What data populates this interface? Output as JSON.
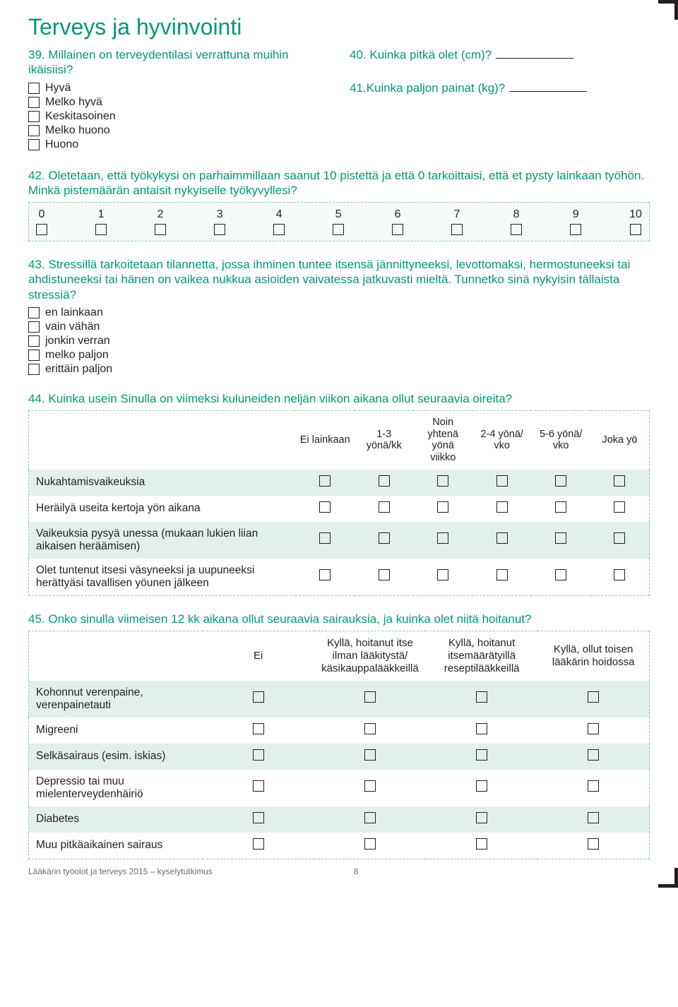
{
  "colors": {
    "accent": "#009878",
    "text": "#231f20",
    "table_border": "#8fc7b7",
    "zebra_even": "#e3f0ea",
    "zebra_odd": "#ffffff",
    "scale_bg": "#f5faf8",
    "footer_text": "#6b6b6b"
  },
  "title": "Terveys ja hyvinvointi",
  "q39": {
    "text": "39. Millainen on terveydentilasi verrattuna muihin ikäisiisi?",
    "options": [
      "Hyvä",
      "Melko hyvä",
      "Keskitasoinen",
      "Melko huono",
      "Huono"
    ]
  },
  "q40": {
    "text": "40. Kuinka pitkä olet (cm)?"
  },
  "q41": {
    "text": "41.Kuinka paljon painat (kg)?"
  },
  "q42": {
    "text": "42. Oletetaan, että työkykysi on parhaimmillaan saanut 10 pistettä ja että 0 tarkoittaisi, että et pysty lainkaan työhön. Minkä pistemäärän antaisit nykyiselle työkyvyllesi?",
    "scale": [
      "0",
      "1",
      "2",
      "3",
      "4",
      "5",
      "6",
      "7",
      "8",
      "9",
      "10"
    ]
  },
  "q43": {
    "text": "43. Stressillä tarkoitetaan tilannetta, jossa ihminen tuntee itsensä jännittyneeksi, levottomaksi, hermostuneeksi tai ahdistuneeksi tai hänen on vaikea nukkua asioiden vaivatessa jatkuvasti mieltä. Tunnetko sinä nykyisin tällaista stressiä?",
    "options": [
      "en lainkaan",
      "vain vähän",
      "jonkin verran",
      "melko paljon",
      "erittäin paljon"
    ]
  },
  "q44": {
    "text": "44. Kuinka usein Sinulla on viimeksi kuluneiden neljän viikon aikana ollut seuraavia oireita?",
    "headers": [
      "Ei lainkaan",
      "1-3 yönä/kk",
      "Noin yhtenä yönä viikko",
      "2-4 yönä/ vko",
      "5-6 yönä/ vko",
      "Joka yö"
    ],
    "rows": [
      "Nukahtamisvaikeuksia",
      "Heräilyä useita kertoja yön aikana",
      "Vaikeuksia pysyä unessa (mukaan lukien liian aikaisen heräämisen)",
      "Olet tuntenut itsesi väsyneeksi ja uupuneeksi herättyäsi tavallisen yöunen jälkeen"
    ]
  },
  "q45": {
    "text": "45. Onko sinulla viimeisen 12 kk aikana ollut seuraavia sairauksia, ja kuinka olet niitä hoitanut?",
    "headers": [
      "Ei",
      "Kyllä, hoitanut itse ilman lääkitystä/ käsikauppalääkkeillä",
      "Kyllä, hoitanut itsemäärätyillä reseptilääkkeillä",
      "Kyllä, ollut toisen lääkärin hoidossa"
    ],
    "rows": [
      "Kohonnut verenpaine, verenpainetauti",
      "Migreeni",
      "Selkäsairaus (esim. iskias)",
      "Depressio tai muu mielenterveydenhäiriö",
      "Diabetes",
      "Muu pitkäaikainen sairaus"
    ]
  },
  "footer": {
    "title": "Lääkärin työolot ja terveys 2015  – kyselytutkimus",
    "page": "8"
  }
}
